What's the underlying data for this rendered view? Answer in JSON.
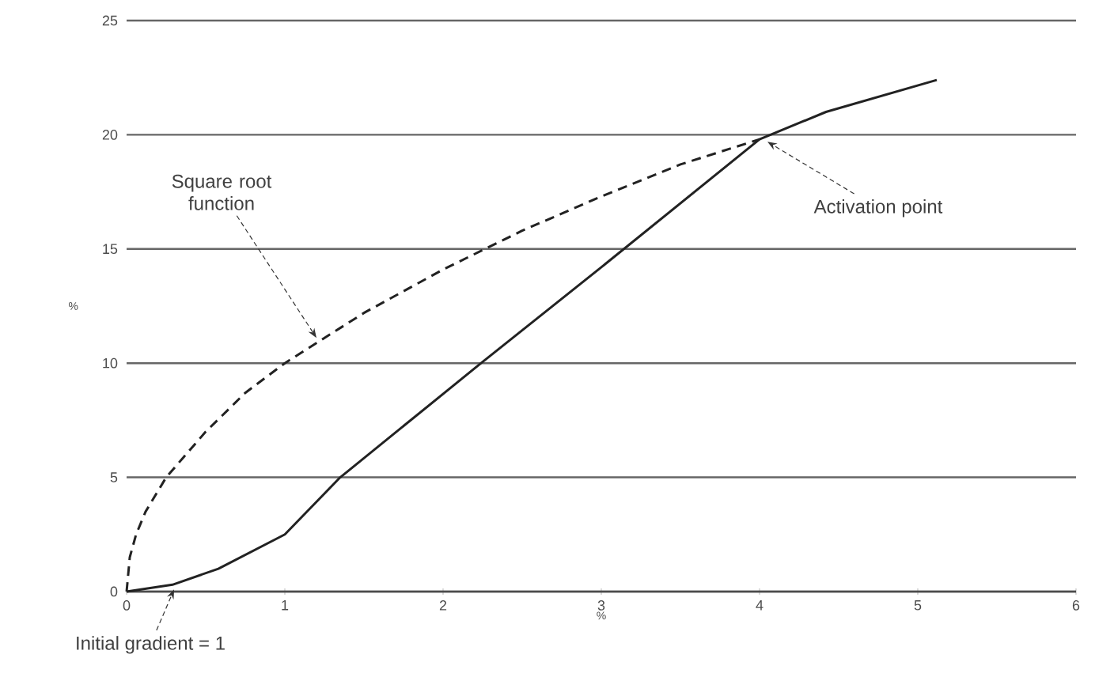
{
  "chart_data": {
    "type": "line",
    "xlabel": "%",
    "ylabel": "%",
    "xlim": [
      0,
      6
    ],
    "ylim": [
      0,
      25
    ],
    "xticks": [
      0,
      1,
      2,
      3,
      4,
      5,
      6
    ],
    "yticks": [
      0,
      5,
      10,
      15,
      20,
      25
    ],
    "grid": "y",
    "marker": "none",
    "series": [
      {
        "color": "#222222",
        "line_style": "dashed",
        "x": [
          0,
          0.02,
          0.06,
          0.12,
          0.25,
          0.5,
          0.75,
          1,
          1.5,
          2,
          2.5,
          3,
          3.5,
          4
        ],
        "values": [
          0,
          1.5,
          2.5,
          3.5,
          5,
          7,
          8.7,
          10,
          12.2,
          14.1,
          15.8,
          17.3,
          18.7,
          19.8
        ]
      },
      {
        "color": "#222222",
        "line_style": "solid",
        "x": [
          0,
          0.29,
          0.58,
          1,
          1.35,
          2.24,
          3,
          4,
          4.42,
          5.12
        ],
        "values": [
          0,
          0.3,
          1,
          2.5,
          5,
          10,
          14.2,
          19.8,
          21,
          22.4
        ]
      }
    ],
    "annotations": [
      {
        "text": "Square root function",
        "x": 1.2,
        "y": 10.9
      },
      {
        "text": "Activation point",
        "x": 4.05,
        "y": 19.9
      },
      {
        "text": "Initial gradient = 1",
        "x": 0.3,
        "y": 0.3
      }
    ]
  }
}
